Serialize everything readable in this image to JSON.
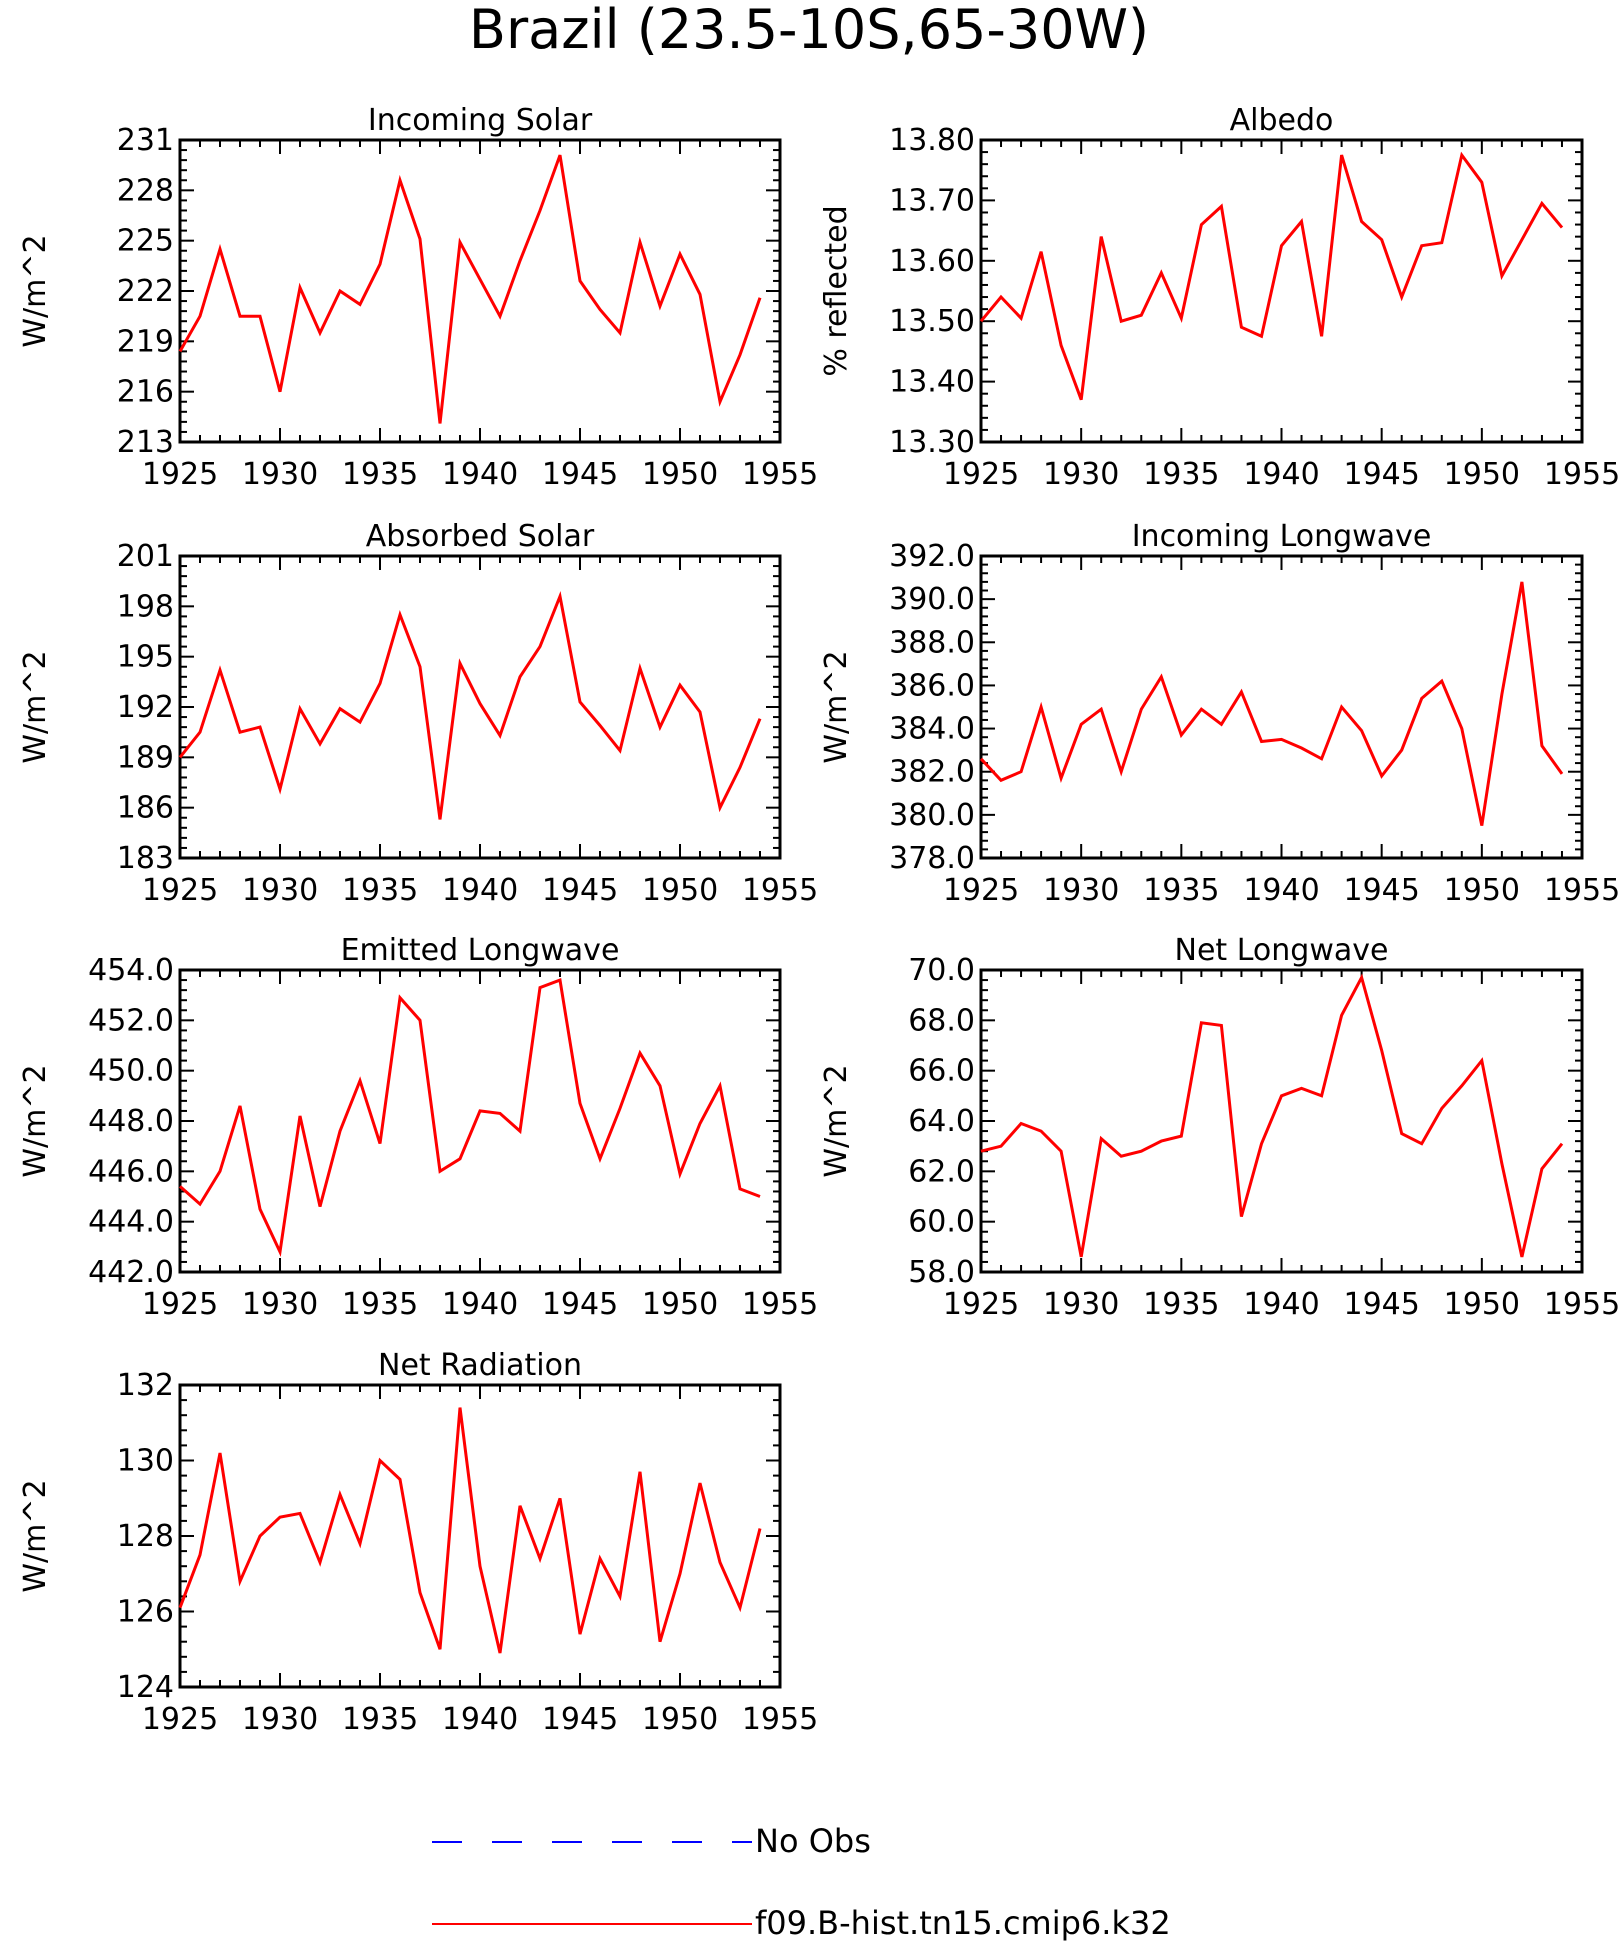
{
  "title": "Brazil (23.5-10S,65-30W)",
  "colors": {
    "model": "#ff0000",
    "obs": "#0000ff",
    "axis": "#000000"
  },
  "legend": {
    "obs_label": "No Obs",
    "model_label": "f09.B-hist.tn15.cmip6.k32"
  },
  "chart_data": [
    {
      "type": "line",
      "title": "Incoming Solar",
      "ylabel": "W/m^2",
      "xlim": [
        1925,
        1955
      ],
      "ylim": [
        213,
        231
      ],
      "xticks": [
        "1925",
        "1930",
        "1935",
        "1940",
        "1945",
        "1950",
        "1955"
      ],
      "yticks": [
        "213",
        "216",
        "219",
        "222",
        "225",
        "228",
        "231"
      ],
      "x_start": 1925,
      "series": [
        {
          "name": "f09.B-hist.tn15.cmip6.k32",
          "values": [
            218.4,
            220.5,
            224.5,
            220.5,
            220.5,
            216.0,
            222.2,
            219.5,
            222.0,
            221.2,
            223.6,
            228.6,
            225.1,
            214.1,
            224.9,
            222.7,
            220.5,
            223.8,
            226.8,
            230.1,
            222.6,
            220.9,
            219.5,
            224.9,
            221.1,
            224.2,
            221.8,
            215.4,
            218.2,
            221.6
          ]
        }
      ]
    },
    {
      "type": "line",
      "title": "Albedo",
      "ylabel": "% reflected",
      "xlim": [
        1925,
        1955
      ],
      "ylim": [
        13.3,
        13.8
      ],
      "xticks": [
        "1925",
        "1930",
        "1935",
        "1940",
        "1945",
        "1950",
        "1955"
      ],
      "yticks": [
        "13.30",
        "13.40",
        "13.50",
        "13.60",
        "13.70",
        "13.80"
      ],
      "x_start": 1925,
      "series": [
        {
          "name": "f09.B-hist.tn15.cmip6.k32",
          "values": [
            13.5,
            13.54,
            13.505,
            13.615,
            13.46,
            13.37,
            13.64,
            13.5,
            13.51,
            13.58,
            13.505,
            13.66,
            13.69,
            13.49,
            13.475,
            13.625,
            13.665,
            13.475,
            13.775,
            13.665,
            13.635,
            13.54,
            13.625,
            13.63,
            13.775,
            13.73,
            13.575,
            13.635,
            13.695,
            13.655
          ]
        }
      ]
    },
    {
      "type": "line",
      "title": "Absorbed Solar",
      "ylabel": "W/m^2",
      "xlim": [
        1925,
        1955
      ],
      "ylim": [
        183,
        201
      ],
      "xticks": [
        "1925",
        "1930",
        "1935",
        "1940",
        "1945",
        "1950",
        "1955"
      ],
      "yticks": [
        "183",
        "186",
        "189",
        "192",
        "195",
        "198",
        "201"
      ],
      "x_start": 1925,
      "series": [
        {
          "name": "f09.B-hist.tn15.cmip6.k32",
          "values": [
            189.0,
            190.5,
            194.2,
            190.5,
            190.8,
            187.1,
            191.9,
            189.8,
            191.9,
            191.1,
            193.4,
            197.5,
            194.4,
            185.3,
            194.6,
            192.2,
            190.3,
            193.8,
            195.6,
            198.6,
            192.3,
            190.9,
            189.4,
            194.3,
            190.8,
            193.3,
            191.7,
            186.0,
            188.4,
            191.3
          ]
        }
      ]
    },
    {
      "type": "line",
      "title": "Incoming Longwave",
      "ylabel": "W/m^2",
      "xlim": [
        1925,
        1955
      ],
      "ylim": [
        378.0,
        392.0
      ],
      "xticks": [
        "1925",
        "1930",
        "1935",
        "1940",
        "1945",
        "1950",
        "1955"
      ],
      "yticks": [
        "378.0",
        "380.0",
        "382.0",
        "384.0",
        "386.0",
        "388.0",
        "390.0",
        "392.0"
      ],
      "x_start": 1925,
      "series": [
        {
          "name": "f09.B-hist.tn15.cmip6.k32",
          "values": [
            382.6,
            381.6,
            382.0,
            385.0,
            381.7,
            384.2,
            384.9,
            382.0,
            384.9,
            386.4,
            383.7,
            384.9,
            384.2,
            385.7,
            383.4,
            383.5,
            383.1,
            382.6,
            385.0,
            383.9,
            381.8,
            383.0,
            385.4,
            386.2,
            384.0,
            379.5,
            385.6,
            390.8,
            383.2,
            381.9
          ]
        }
      ]
    },
    {
      "type": "line",
      "title": "Emitted Longwave",
      "ylabel": "W/m^2",
      "xlim": [
        1925,
        1955
      ],
      "ylim": [
        442.0,
        454.0
      ],
      "xticks": [
        "1925",
        "1930",
        "1935",
        "1940",
        "1945",
        "1950",
        "1955"
      ],
      "yticks": [
        "442.0",
        "444.0",
        "446.0",
        "448.0",
        "450.0",
        "452.0",
        "454.0"
      ],
      "x_start": 1925,
      "series": [
        {
          "name": "f09.B-hist.tn15.cmip6.k32",
          "values": [
            445.4,
            444.7,
            446.0,
            448.6,
            444.5,
            442.8,
            448.2,
            444.6,
            447.6,
            449.6,
            447.1,
            452.9,
            452.0,
            446.0,
            446.5,
            448.4,
            448.3,
            447.6,
            453.3,
            453.6,
            448.7,
            446.5,
            448.5,
            450.7,
            449.4,
            445.9,
            447.9,
            449.4,
            445.3,
            445.0
          ]
        }
      ]
    },
    {
      "type": "line",
      "title": "Net Longwave",
      "ylabel": "W/m^2",
      "xlim": [
        1925,
        1955
      ],
      "ylim": [
        58.0,
        70.0
      ],
      "xticks": [
        "1925",
        "1930",
        "1935",
        "1940",
        "1945",
        "1950",
        "1955"
      ],
      "yticks": [
        "58.0",
        "60.0",
        "62.0",
        "64.0",
        "66.0",
        "68.0",
        "70.0"
      ],
      "x_start": 1925,
      "series": [
        {
          "name": "f09.B-hist.tn15.cmip6.k32",
          "values": [
            62.8,
            63.0,
            63.9,
            63.6,
            62.8,
            58.6,
            63.3,
            62.6,
            62.8,
            63.2,
            63.4,
            67.9,
            67.8,
            60.2,
            63.1,
            65.0,
            65.3,
            65.0,
            68.2,
            69.7,
            66.8,
            63.5,
            63.1,
            64.5,
            65.4,
            66.4,
            62.3,
            58.6,
            62.1,
            63.1
          ]
        }
      ]
    },
    {
      "type": "line",
      "title": "Net Radiation",
      "ylabel": "W/m^2",
      "xlim": [
        1925,
        1955
      ],
      "ylim": [
        124,
        132
      ],
      "xticks": [
        "1925",
        "1930",
        "1935",
        "1940",
        "1945",
        "1950",
        "1955"
      ],
      "yticks": [
        "124",
        "126",
        "128",
        "130",
        "132"
      ],
      "x_start": 1925,
      "series": [
        {
          "name": "f09.B-hist.tn15.cmip6.k32",
          "values": [
            126.1,
            127.5,
            130.2,
            126.8,
            128.0,
            128.5,
            128.6,
            127.3,
            129.1,
            127.8,
            130.0,
            129.5,
            126.5,
            125.0,
            131.4,
            127.2,
            124.9,
            128.8,
            127.4,
            129.0,
            125.4,
            127.4,
            126.4,
            129.7,
            125.2,
            127.0,
            129.4,
            127.3,
            126.1,
            128.2
          ]
        }
      ]
    }
  ]
}
